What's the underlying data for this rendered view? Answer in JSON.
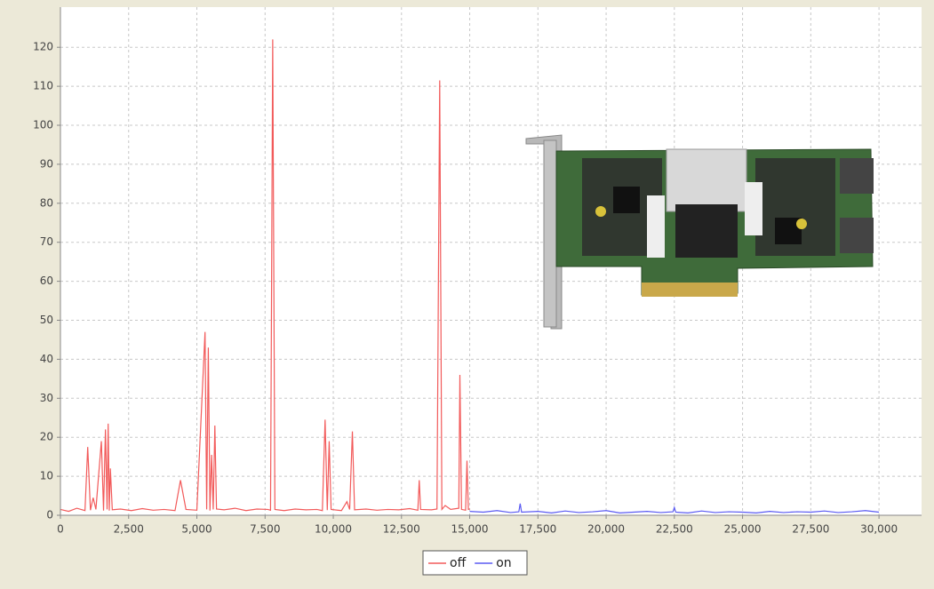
{
  "chart_data": {
    "type": "line",
    "grid": true,
    "legend": "bottom",
    "xlim": [
      0,
      31560
    ],
    "ylim": [
      0,
      130.3
    ],
    "xticks": [
      0,
      {
        "value": 2500,
        "label": "2,500"
      },
      {
        "value": 5000,
        "label": "5,000"
      },
      {
        "value": 7500,
        "label": "7,500"
      },
      {
        "value": 10000,
        "label": "10,000"
      },
      {
        "value": 12500,
        "label": "12,500"
      },
      {
        "value": 15000,
        "label": "15,000"
      },
      {
        "value": 17500,
        "label": "17,500"
      },
      {
        "value": 20000,
        "label": "20,000"
      },
      {
        "value": 22500,
        "label": "22,500"
      },
      {
        "value": 25000,
        "label": "25,000"
      },
      {
        "value": 27500,
        "label": "27,500"
      },
      {
        "value": 30000,
        "label": "30,000"
      }
    ],
    "yticks": [
      0,
      10,
      20,
      30,
      40,
      50,
      60,
      70,
      80,
      90,
      100,
      110,
      120
    ],
    "series": [
      {
        "name": "off",
        "color": "#f25a5a",
        "x": [
          0,
          300,
          600,
          900,
          1000,
          1100,
          1200,
          1300,
          1500,
          1580,
          1650,
          1710,
          1750,
          1790,
          1830,
          1900,
          2200,
          2600,
          3000,
          3400,
          3800,
          4200,
          4400,
          4600,
          5000,
          5300,
          5360,
          5420,
          5480,
          5540,
          5600,
          5660,
          5720,
          6000,
          6400,
          6800,
          7200,
          7600,
          7700,
          7780,
          7860,
          8200,
          8600,
          9000,
          9400,
          9600,
          9700,
          9780,
          9850,
          9920,
          10300,
          10500,
          10600,
          10700,
          10780,
          11200,
          11600,
          12000,
          12400,
          12800,
          13100,
          13150,
          13200,
          13600,
          13800,
          13900,
          13980,
          14100,
          14300,
          14600,
          14640,
          14700,
          14850,
          14900,
          14950,
          15000
        ],
        "values": [
          1.5,
          1,
          1.8,
          1.2,
          17.5,
          1.3,
          4.5,
          1.5,
          19,
          1.2,
          22,
          1.5,
          23.5,
          1.2,
          12,
          1.4,
          1.6,
          1.2,
          1.7,
          1.3,
          1.5,
          1.2,
          9,
          1.5,
          1.3,
          47,
          1.5,
          43,
          1.2,
          15.5,
          1.5,
          23,
          1.6,
          1.4,
          1.8,
          1.2,
          1.6,
          1.5,
          1.3,
          122,
          1.5,
          1.2,
          1.6,
          1.4,
          1.5,
          1.2,
          24.5,
          1.3,
          19,
          1.5,
          1.2,
          3.5,
          1.5,
          21.5,
          1.4,
          1.6,
          1.3,
          1.5,
          1.4,
          1.7,
          1.3,
          9,
          1.5,
          1.4,
          1.6,
          111.5,
          1.5,
          2.5,
          1.5,
          1.8,
          36,
          1.5,
          1.3,
          14,
          1.5,
          1.6
        ]
      },
      {
        "name": "on",
        "color": "#5a5af2",
        "x": [
          15000,
          15500,
          16000,
          16500,
          16800,
          16850,
          16900,
          17500,
          18000,
          18500,
          19000,
          19500,
          20000,
          20500,
          21000,
          21500,
          22000,
          22450,
          22500,
          22550,
          23000,
          23500,
          24000,
          24500,
          25000,
          25500,
          26000,
          26500,
          27000,
          27500,
          28000,
          28500,
          29000,
          29500,
          30000
        ],
        "values": [
          1,
          0.8,
          1.2,
          0.7,
          0.9,
          3,
          0.8,
          1,
          0.6,
          1.1,
          0.7,
          0.9,
          1.2,
          0.6,
          0.8,
          1,
          0.7,
          0.9,
          2,
          0.8,
          0.6,
          1.1,
          0.7,
          0.9,
          0.8,
          0.6,
          1,
          0.7,
          0.9,
          0.8,
          1.1,
          0.7,
          0.9,
          1.2,
          0.8
        ]
      }
    ]
  }
}
